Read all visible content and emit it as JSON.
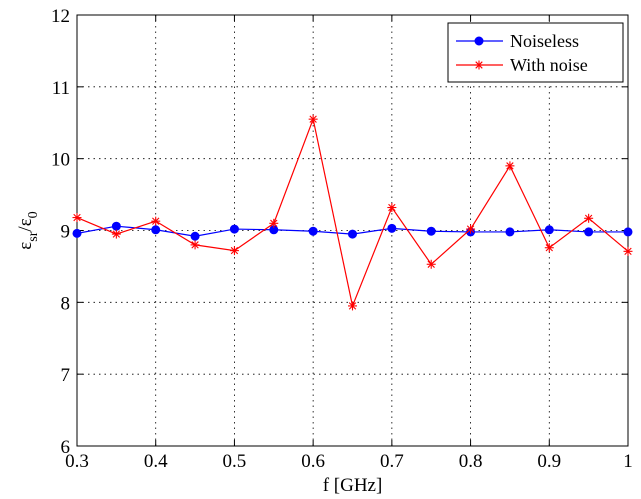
{
  "chart_data": {
    "type": "line",
    "title": "",
    "xlabel": "f [GHz]",
    "ylabel": "ε_sr/ε_0",
    "ylabel_parts": {
      "main1": "ε",
      "sub1": "sr",
      "sep": "/ε",
      "sub2": "0"
    },
    "xlim": [
      0.3,
      1.0
    ],
    "ylim": [
      6,
      12
    ],
    "xticks": [
      0.3,
      0.4,
      0.5,
      0.6,
      0.7,
      0.8,
      0.9,
      1.0
    ],
    "xtick_labels": [
      "0.3",
      "0.4",
      "0.5",
      "0.6",
      "0.7",
      "0.8",
      "0.9",
      "1"
    ],
    "yticks": [
      6,
      7,
      8,
      9,
      10,
      11,
      12
    ],
    "ytick_labels": [
      "6",
      "7",
      "8",
      "9",
      "10",
      "11",
      "12"
    ],
    "grid": true,
    "legend_position": "top-right",
    "x": [
      0.3,
      0.35,
      0.4,
      0.45,
      0.5,
      0.55,
      0.6,
      0.65,
      0.7,
      0.75,
      0.8,
      0.85,
      0.9,
      0.95,
      1.0
    ],
    "series": [
      {
        "name": "Noiseless",
        "color": "#0000ff",
        "marker": "dot",
        "values": [
          8.96,
          9.06,
          9.01,
          8.92,
          9.02,
          9.01,
          8.99,
          8.95,
          9.03,
          8.99,
          8.98,
          8.98,
          9.01,
          8.98,
          8.98
        ]
      },
      {
        "name": "With noise",
        "color": "#ff0000",
        "marker": "star",
        "values": [
          9.18,
          8.95,
          9.13,
          8.8,
          8.72,
          9.1,
          10.55,
          7.95,
          9.32,
          8.53,
          9.02,
          9.9,
          8.76,
          9.17,
          8.71
        ]
      }
    ]
  }
}
